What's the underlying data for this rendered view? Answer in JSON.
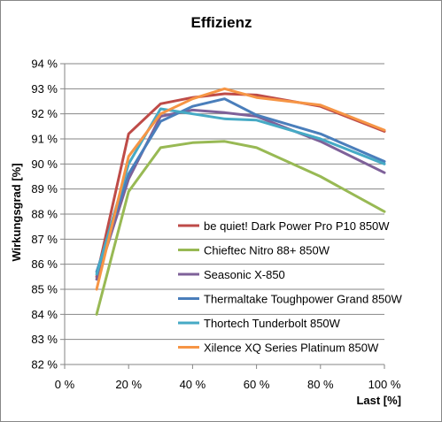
{
  "chart_data": {
    "type": "line",
    "title": "Effizienz",
    "xlabel": "Last [%]",
    "ylabel": "Wirkungsgrad [%]",
    "xlim": [
      0,
      100
    ],
    "ylim": [
      82,
      94
    ],
    "x_ticks": [
      "0 %",
      "20 %",
      "40 %",
      "60 %",
      "80 %",
      "100 %"
    ],
    "y_ticks": [
      "82 %",
      "83 %",
      "84 %",
      "85 %",
      "86 %",
      "87 %",
      "88 %",
      "89 %",
      "90 %",
      "91 %",
      "92 %",
      "93 %",
      "94 %"
    ],
    "grid": true,
    "legend_position": "lower-right-inside",
    "x": [
      10,
      20,
      30,
      40,
      50,
      60,
      80,
      100
    ],
    "series": [
      {
        "name": "be quiet! Dark Power Pro P10 850W",
        "color": "#be4b48",
        "values": [
          85.5,
          91.2,
          92.4,
          92.65,
          92.8,
          92.75,
          92.3,
          91.3
        ]
      },
      {
        "name": "Chieftec Nitro 88+ 850W",
        "color": "#98b954",
        "values": [
          84.0,
          88.9,
          90.65,
          90.85,
          90.9,
          90.65,
          89.5,
          88.1
        ]
      },
      {
        "name": "Seasonic X-850",
        "color": "#7e6199",
        "values": [
          85.4,
          89.4,
          91.9,
          92.15,
          92.05,
          91.9,
          90.9,
          89.65
        ]
      },
      {
        "name": "Thermaltake Toughpower Grand 850W",
        "color": "#4a7ebb",
        "values": [
          85.7,
          89.6,
          91.7,
          92.3,
          92.6,
          91.95,
          91.2,
          90.1
        ]
      },
      {
        "name": "Thortech Tunderbolt 850W",
        "color": "#46aac5",
        "values": [
          85.6,
          90.0,
          92.2,
          92.0,
          91.8,
          91.75,
          91.0,
          90.0
        ]
      },
      {
        "name": "Xilence XQ Series Platinum 850W",
        "color": "#f69545",
        "values": [
          85.0,
          90.3,
          92.0,
          92.6,
          93.0,
          92.65,
          92.35,
          91.35
        ]
      }
    ]
  }
}
